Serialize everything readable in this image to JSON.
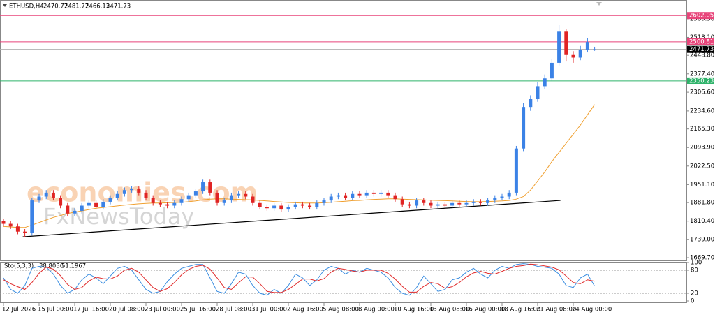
{
  "chart_data": [
    {
      "type": "candlestick",
      "title": "ETHUSD,H4",
      "up_color": "#3b82e6",
      "down_color": "#e02424",
      "open": [
        1810,
        1800,
        1790,
        1770,
        1765,
        1890,
        1905,
        1920,
        1900,
        1870,
        1840,
        1850,
        1870,
        1880,
        1865,
        1885,
        1900,
        1915,
        1930,
        1935,
        1920,
        1900,
        1880,
        1875,
        1870,
        1880,
        1895,
        1910,
        1925,
        1960,
        1920,
        1880,
        1890,
        1910,
        1915,
        1905,
        1880,
        1865,
        1860,
        1870,
        1855,
        1865,
        1875,
        1870,
        1865,
        1880,
        1890,
        1905,
        1910,
        1900,
        1915,
        1910,
        1920,
        1915,
        1920,
        1910,
        1895,
        1875,
        1870,
        1890,
        1880,
        1870,
        1875,
        1870,
        1880,
        1875,
        1880,
        1885,
        1880,
        1890,
        1900,
        1905,
        1920,
        2090,
        2250,
        2280,
        2330,
        2360,
        2420,
        2540,
        2450,
        2440,
        2470,
        2470.77
      ],
      "high": [
        1820,
        1810,
        1800,
        1780,
        1900,
        1915,
        1930,
        1930,
        1910,
        1880,
        1860,
        1880,
        1890,
        1890,
        1895,
        1910,
        1925,
        1940,
        1945,
        1945,
        1930,
        1910,
        1890,
        1885,
        1890,
        1905,
        1920,
        1935,
        1970,
        1970,
        1930,
        1900,
        1920,
        1925,
        1925,
        1915,
        1890,
        1875,
        1880,
        1880,
        1875,
        1885,
        1885,
        1880,
        1890,
        1900,
        1915,
        1920,
        1920,
        1925,
        1925,
        1930,
        1930,
        1930,
        1930,
        1920,
        1905,
        1885,
        1900,
        1900,
        1890,
        1885,
        1885,
        1890,
        1890,
        1890,
        1895,
        1895,
        1900,
        1910,
        1915,
        1930,
        2100,
        2265,
        2295,
        2345,
        2375,
        2435,
        2565,
        2550,
        2465,
        2485,
        2515,
        2481.77
      ],
      "low": [
        1790,
        1780,
        1760,
        1750,
        1755,
        1880,
        1895,
        1890,
        1860,
        1830,
        1830,
        1840,
        1860,
        1855,
        1855,
        1875,
        1890,
        1905,
        1920,
        1910,
        1890,
        1870,
        1865,
        1860,
        1860,
        1870,
        1885,
        1900,
        1915,
        1910,
        1870,
        1870,
        1880,
        1900,
        1895,
        1870,
        1855,
        1850,
        1850,
        1845,
        1845,
        1855,
        1860,
        1855,
        1855,
        1870,
        1880,
        1895,
        1890,
        1890,
        1900,
        1900,
        1905,
        1905,
        1900,
        1885,
        1865,
        1860,
        1860,
        1870,
        1860,
        1860,
        1860,
        1860,
        1865,
        1865,
        1870,
        1870,
        1870,
        1880,
        1890,
        1895,
        1910,
        2080,
        2235,
        2270,
        2320,
        2350,
        2410,
        2425,
        2420,
        2430,
        2460,
        2466.13
      ],
      "close": [
        1800,
        1790,
        1770,
        1765,
        1890,
        1905,
        1920,
        1900,
        1870,
        1840,
        1850,
        1870,
        1880,
        1865,
        1885,
        1900,
        1915,
        1930,
        1935,
        1920,
        1900,
        1880,
        1875,
        1870,
        1880,
        1895,
        1910,
        1925,
        1960,
        1920,
        1880,
        1890,
        1910,
        1915,
        1905,
        1880,
        1865,
        1860,
        1870,
        1855,
        1865,
        1875,
        1870,
        1865,
        1880,
        1890,
        1905,
        1910,
        1900,
        1915,
        1910,
        1920,
        1915,
        1920,
        1910,
        1895,
        1875,
        1870,
        1890,
        1880,
        1870,
        1875,
        1870,
        1880,
        1875,
        1880,
        1885,
        1880,
        1890,
        1900,
        1905,
        1920,
        2090,
        2250,
        2280,
        2330,
        2360,
        2420,
        2540,
        2450,
        2440,
        2470,
        2500,
        2471.73
      ],
      "ma": {
        "color": "#f0a030",
        "values": [
          1790,
          1788,
          1786,
          1786,
          1795,
          1805,
          1815,
          1825,
          1832,
          1840,
          1845,
          1850,
          1855,
          1860,
          1863,
          1866,
          1869,
          1872,
          1875,
          1877,
          1879,
          1880,
          1880,
          1881,
          1882,
          1883,
          1885,
          1888,
          1892,
          1895,
          1896,
          1896,
          1895,
          1894,
          1893,
          1892,
          1890,
          1888,
          1886,
          1884,
          1882,
          1881,
          1880,
          1880,
          1880,
          1881,
          1883,
          1885,
          1887,
          1889,
          1890,
          1892,
          1894,
          1895,
          1896,
          1896,
          1895,
          1894,
          1893,
          1892,
          1891,
          1890,
          1889,
          1888,
          1887,
          1886,
          1885,
          1885,
          1886,
          1887,
          1888,
          1890,
          1895,
          1905,
          1930,
          1965,
          2000,
          2040,
          2075,
          2110,
          2145,
          2180,
          2220,
          2259
        ]
      },
      "levels": [
        {
          "value": 2602.05,
          "color": "#e8457a"
        },
        {
          "value": 2500.81,
          "color": "#e8457a"
        },
        {
          "value": 2350.23,
          "color": "#2fb36a"
        }
      ],
      "trendline": {
        "x": [
          2.7,
          78.2
        ],
        "y": [
          1750,
          1890
        ],
        "color": "#000000"
      },
      "watermarks": [
        "economies.com",
        "FxNewsToday"
      ],
      "ylim": [
        1659,
        2651
      ],
      "yticks": [
        {
          "value": 2589.5,
          "label": "2589.50"
        },
        {
          "value": 2518.1,
          "label": "2518.10"
        },
        {
          "value": 2448.8,
          "label": "2448.80"
        },
        {
          "value": 2377.4,
          "label": "2377.40"
        },
        {
          "value": 2306.6,
          "label": "2306.60"
        },
        {
          "value": 2234.6,
          "label": "2234.60"
        },
        {
          "value": 2165.3,
          "label": "2165.30"
        },
        {
          "value": 2093.9,
          "label": "2093.90"
        },
        {
          "value": 2022.5,
          "label": "2022.50"
        },
        {
          "value": 1951.1,
          "label": "1951.10"
        },
        {
          "value": 1881.8,
          "label": "1881.80"
        },
        {
          "value": 1810.4,
          "label": "1810.40"
        },
        {
          "value": 1739,
          "label": "1739.00"
        },
        {
          "value": 1669.7,
          "label": "1669.70"
        }
      ],
      "xticks": [
        {
          "value": 0,
          "label": "12 Jul 2026"
        },
        {
          "value": 5,
          "label": "15 Jul 00:00"
        },
        {
          "value": 10,
          "label": "17 Jul 16:00"
        },
        {
          "value": 15,
          "label": "20 Jul 08:00"
        },
        {
          "value": 20,
          "label": "23 Jul 00:00"
        },
        {
          "value": 25,
          "label": "25 Jul 16:00"
        },
        {
          "value": 30,
          "label": "28 Jul 08:00"
        },
        {
          "value": 35,
          "label": "31 Jul 00:00"
        },
        {
          "value": 40,
          "label": "2 Aug 16:00"
        },
        {
          "value": 45,
          "label": "5 Aug 08:00"
        },
        {
          "value": 50,
          "label": "8 Aug 00:00"
        },
        {
          "value": 55,
          "label": "10 Aug 16:00"
        },
        {
          "value": 60,
          "label": "13 Aug 08:00"
        },
        {
          "value": 65,
          "label": "16 Aug 00:00"
        },
        {
          "value": 70,
          "label": "18 Aug 16:00"
        },
        {
          "value": 75,
          "label": "21 Aug 08:00"
        },
        {
          "value": 80,
          "label": "24 Aug 00:00"
        }
      ]
    },
    {
      "type": "line",
      "title": "Sto(5,3,3)",
      "series": [
        {
          "color": "#3a8de0",
          "values": [
            60,
            30,
            20,
            40,
            85,
            90,
            88,
            70,
            40,
            20,
            30,
            55,
            70,
            60,
            45,
            65,
            85,
            90,
            80,
            55,
            30,
            20,
            25,
            50,
            70,
            85,
            90,
            95,
            95,
            60,
            25,
            20,
            45,
            75,
            70,
            40,
            20,
            15,
            30,
            20,
            40,
            70,
            60,
            40,
            55,
            80,
            90,
            85,
            70,
            80,
            75,
            85,
            80,
            75,
            60,
            35,
            20,
            15,
            35,
            65,
            45,
            25,
            30,
            55,
            60,
            75,
            85,
            70,
            60,
            80,
            90,
            85,
            95,
            97,
            95,
            90,
            88,
            85,
            70,
            40,
            35,
            60,
            70,
            38.8036
          ]
        },
        {
          "color": "#e02a2a",
          "values": [
            55,
            45,
            37,
            30,
            48,
            72,
            88,
            83,
            66,
            43,
            30,
            35,
            52,
            62,
            58,
            57,
            65,
            80,
            85,
            75,
            55,
            35,
            25,
            32,
            48,
            68,
            82,
            90,
            93,
            83,
            60,
            35,
            30,
            47,
            63,
            62,
            45,
            25,
            22,
            22,
            30,
            43,
            57,
            57,
            52,
            58,
            75,
            85,
            82,
            78,
            75,
            80,
            80,
            80,
            72,
            57,
            38,
            23,
            23,
            38,
            48,
            45,
            33,
            37,
            48,
            63,
            73,
            77,
            72,
            70,
            77,
            85,
            90,
            92,
            96,
            94,
            91,
            88,
            81,
            65,
            48,
            45,
            55,
            51.1967
          ]
        }
      ],
      "levels": [
        20,
        80
      ],
      "ylim": [
        0,
        100
      ],
      "yticks": [
        0,
        20,
        80,
        100
      ]
    }
  ]
}
